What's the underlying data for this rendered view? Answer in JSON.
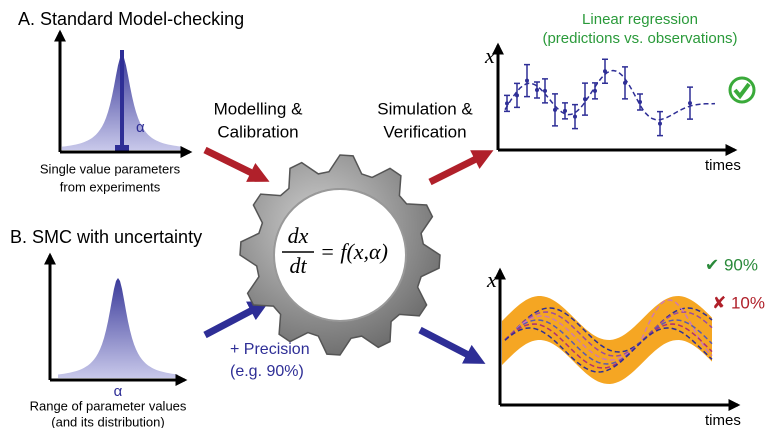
{
  "panel_a": {
    "title": "A. Standard Model-checking",
    "param_label": "α",
    "caption": [
      "Single value parameters",
      "from experiments"
    ]
  },
  "step_1": [
    "Modelling &",
    "Calibration"
  ],
  "step_2": [
    "Simulation &",
    "Verification"
  ],
  "equation": {
    "numerator": "dx",
    "denominator": "dt",
    "rhs": "= f(x,α)"
  },
  "panel_b": {
    "title": "B. SMC with uncertainty",
    "param_label": "α",
    "caption": [
      "Range of parameter values",
      "(and its distribution)"
    ],
    "precision": [
      "+ Precision",
      "(e.g. 90%)"
    ]
  },
  "plot_a": {
    "title": [
      "Linear regression",
      "(predictions vs. observations)"
    ],
    "y_label": "x",
    "x_label": "times"
  },
  "plot_b": {
    "y_label": "x",
    "x_label": "times",
    "pass": "✔ 90%",
    "fail": "✘ 10%"
  }
}
